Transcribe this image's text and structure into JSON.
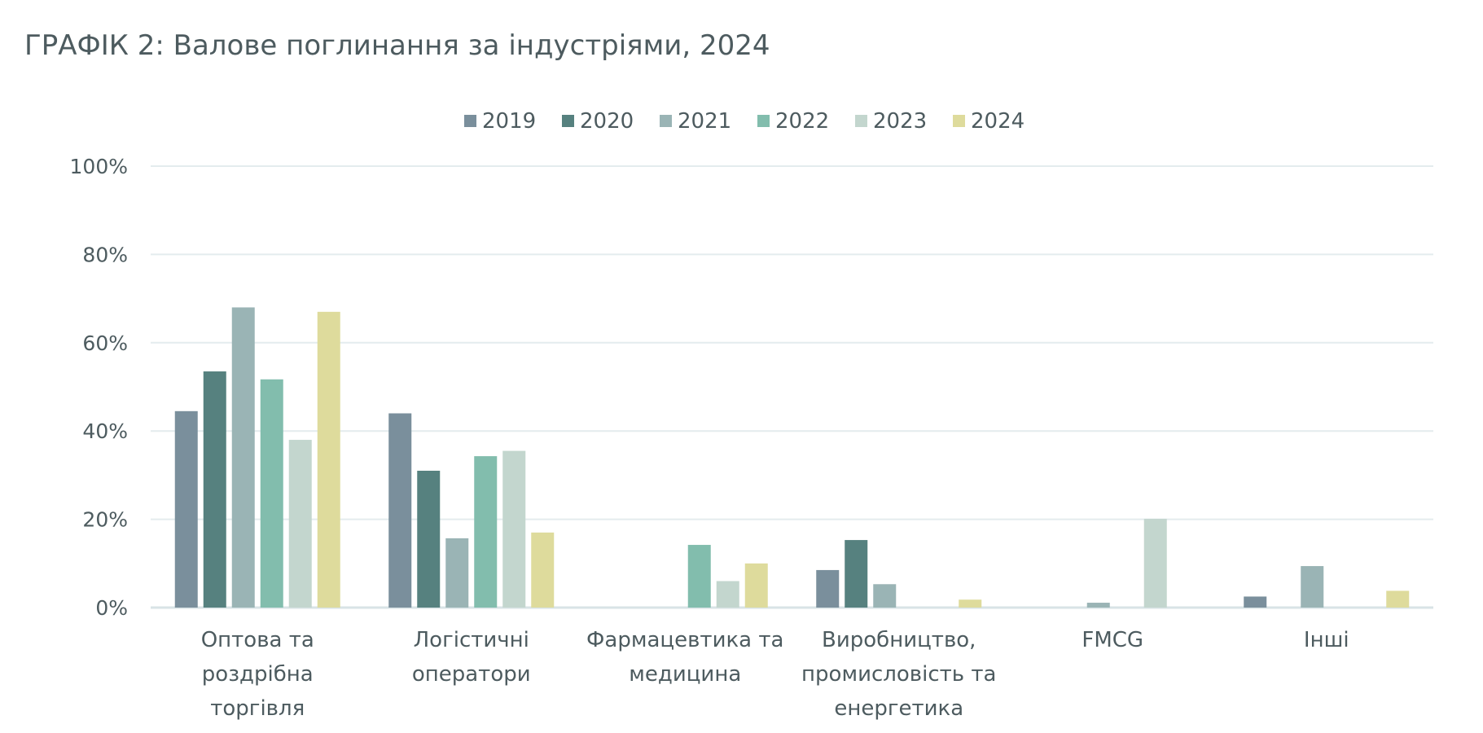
{
  "chart_data": {
    "type": "bar",
    "title": "ГРАФІК 2: Валове поглинання за індустріями, 2024",
    "xlabel": "",
    "ylabel": "",
    "ylim": [
      0,
      100
    ],
    "yticks": [
      "0%",
      "20%",
      "40%",
      "60%",
      "80%",
      "100%"
    ],
    "grid": true,
    "legend_position": "top",
    "categories": [
      [
        "Оптова та",
        "роздрібна",
        "торгівля"
      ],
      [
        "Логістичні",
        "оператори"
      ],
      [
        "Фармацевтика та",
        "медицина"
      ],
      [
        "Виробництво,",
        "промисловість та",
        "енергетика"
      ],
      [
        "FMCG"
      ],
      [
        "Інші"
      ]
    ],
    "series": [
      {
        "name": "2019",
        "color": "#7a8f9c",
        "values": [
          44.5,
          44,
          0,
          8.5,
          0,
          2.5
        ]
      },
      {
        "name": "2020",
        "color": "#56817f",
        "values": [
          53.5,
          31,
          0,
          15.3,
          0,
          0
        ]
      },
      {
        "name": "2021",
        "color": "#9ab4b5",
        "values": [
          68,
          15.7,
          0,
          5.3,
          1.1,
          9.4
        ]
      },
      {
        "name": "2022",
        "color": "#82bdad",
        "values": [
          51.7,
          34.3,
          14.2,
          0,
          0,
          0
        ]
      },
      {
        "name": "2023",
        "color": "#c3d6ce",
        "values": [
          38,
          35.5,
          6,
          0,
          20.1,
          0
        ]
      },
      {
        "name": "2024",
        "color": "#dedb9c",
        "values": [
          67,
          17,
          10,
          1.8,
          0,
          3.8
        ]
      }
    ]
  }
}
